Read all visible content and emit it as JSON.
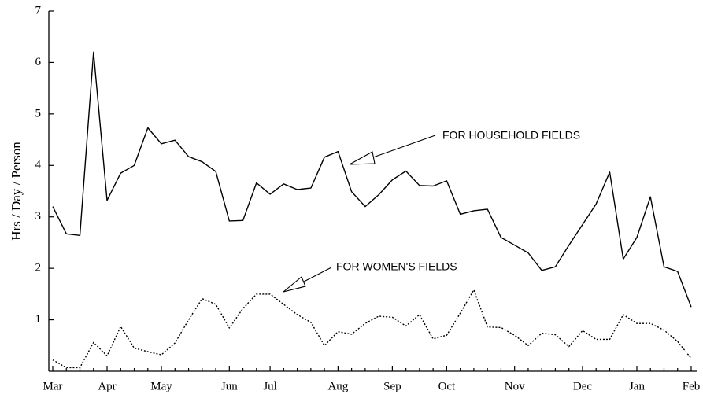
{
  "chart_data": {
    "type": "line",
    "ylabel": "Hrs / Day / Person",
    "categories": [
      "Mar",
      null,
      null,
      null,
      "Apr",
      null,
      null,
      null,
      "May",
      null,
      null,
      null,
      null,
      "Jun",
      null,
      null,
      "Jul",
      null,
      null,
      null,
      null,
      "Aug",
      null,
      null,
      null,
      "Sep",
      null,
      null,
      null,
      "Oct",
      null,
      null,
      null,
      null,
      "Nov",
      null,
      null,
      null,
      null,
      "Dec",
      null,
      null,
      null,
      "Jan",
      null,
      null,
      null,
      "Feb"
    ],
    "series": [
      {
        "name": "FOR HOUSEHOLD FIELDS",
        "color": "#000000",
        "linestyle": "solid",
        "values": [
          3.2,
          2.67,
          2.64,
          6.2,
          3.32,
          3.85,
          4.0,
          4.73,
          4.42,
          4.49,
          4.17,
          4.07,
          3.88,
          2.92,
          2.93,
          3.66,
          3.44,
          3.64,
          3.53,
          3.56,
          4.16,
          4.27,
          3.49,
          3.2,
          3.43,
          3.72,
          3.89,
          3.61,
          3.6,
          3.7,
          3.05,
          3.12,
          3.15,
          2.6,
          2.45,
          2.3,
          1.96,
          2.03,
          2.45,
          2.85,
          3.25,
          3.87,
          2.18,
          2.6,
          3.39,
          2.03,
          1.94,
          1.25
        ]
      },
      {
        "name": "FOR WOMEN'S FIELDS",
        "color": "#000000",
        "linestyle": "dotted",
        "values": [
          0.22,
          0.07,
          0.07,
          0.56,
          0.3,
          0.87,
          0.45,
          0.38,
          0.32,
          0.55,
          1.0,
          1.41,
          1.3,
          0.84,
          1.22,
          1.5,
          1.5,
          1.3,
          1.1,
          0.95,
          0.5,
          0.77,
          0.72,
          0.93,
          1.07,
          1.05,
          0.88,
          1.1,
          0.63,
          0.7,
          1.13,
          1.58,
          0.86,
          0.85,
          0.7,
          0.5,
          0.74,
          0.71,
          0.48,
          0.79,
          0.62,
          0.62,
          1.1,
          0.93,
          0.93,
          0.8,
          0.58,
          0.25
        ]
      }
    ],
    "ylim": [
      0,
      7
    ],
    "yticks": [
      1,
      2,
      3,
      4,
      5,
      6,
      7
    ],
    "grid": false
  }
}
